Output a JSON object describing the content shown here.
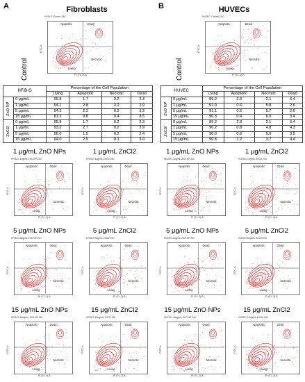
{
  "panels": {
    "a": {
      "letter": "A",
      "title": "Fibroblasts"
    },
    "b": {
      "letter": "B",
      "title": "HUVECs"
    }
  },
  "control_label": "Control",
  "quadrants": {
    "tl": "Apoptotic",
    "tr": "Dead",
    "bl": "Living",
    "br": "Necrotic"
  },
  "axes": {
    "y": "FITC-A",
    "x": "PI (FL-3)-A"
  },
  "control_plots": {
    "a": {
      "title": "HFIB-G-Control 24h"
    },
    "b": {
      "title": "HUVEC-Control 24h"
    }
  },
  "tables": {
    "a": {
      "corner": "HFIB-G",
      "header_main": "Percentage of the Cell Population",
      "columns": [
        "Living",
        "Apoptotic",
        "Necrotic",
        "Dead"
      ],
      "groups": [
        "ZnO NP",
        "ZnCl2"
      ],
      "rows": [
        [
          "0 μg/mL",
          "95.8",
          "1.7",
          "0.2",
          "2.3"
        ],
        [
          "1 μg/mL",
          "94.1",
          "2.8",
          "0.2",
          "2.9"
        ],
        [
          "5 μg/mL",
          "94.3",
          "2.3",
          "0.2",
          "3.2"
        ],
        [
          "15 μg/mL",
          "81.3",
          "9.8",
          "0.4",
          "8.5"
        ],
        [
          "0 μg/mL",
          "95.8",
          "1.7",
          "0.2",
          "2.3"
        ],
        [
          "1 μg/mL",
          "93.2",
          "2.7",
          "0.2",
          "3.9"
        ],
        [
          "5 μg/mL",
          "96.0",
          "1.5",
          "0.2",
          "2.4"
        ],
        [
          "15 μg/mL",
          "94.0",
          "2.5",
          "0.1",
          "3.4"
        ]
      ]
    },
    "b": {
      "corner": "HUVEC",
      "header_main": "Percentage of the Cell Population",
      "columns": [
        "Living",
        "Apoptotic",
        "Necrotic",
        "Dead"
      ],
      "groups": [
        "ZnO NP",
        "ZnCl2"
      ],
      "rows": [
        [
          "0 μg/mL",
          "89.2",
          "2.3",
          "2.1",
          "6.4"
        ],
        [
          "1 μg/mL",
          "91.0",
          "0.6",
          "5.8",
          "2.6"
        ],
        [
          "5 μg/mL",
          "91.1",
          "0.6",
          "5.7",
          "2.6"
        ],
        [
          "15 μg/mL",
          "90.3",
          "0.4",
          "6.0",
          "3.4"
        ],
        [
          "0 μg/mL",
          "89.2",
          "2.3",
          "2.1",
          "6.4"
        ],
        [
          "1 μg/mL",
          "90.2",
          "0.8",
          "4.8",
          "4.3"
        ],
        [
          "5 μg/mL",
          "90.0",
          "0.6",
          "5.9",
          "3.5"
        ],
        [
          "15 μg/mL",
          "90.8",
          "1.2",
          "3.7",
          "4.4"
        ]
      ]
    }
  },
  "plot_grid": [
    {
      "caption": "1 μg/mL ZnO NPs",
      "title": "HFIB-G-1ug/mL ZnO NP 24h"
    },
    {
      "caption": "1 μg/mL ZnCl2",
      "title": "HFIB-G-1ug/mL ZnCl2 24h"
    },
    {
      "caption": "1 μg/mL ZnO NPs",
      "title": "HUVEC-1ug/mL ZnO NP 24h"
    },
    {
      "caption": "1 μg/mL ZnCl2",
      "title": "HUVEC-1ug/mL ZnCl2 24h"
    },
    {
      "caption": "5 μg/mL ZnO NPs",
      "title": "HFIB-G-5ug/mL ZnO NP 24h"
    },
    {
      "caption": "5 μg/mL ZnCl2",
      "title": "HFIB-G-5ug/mL ZnCl2 24h"
    },
    {
      "caption": "5 μg/mL ZnO NPs",
      "title": "HUVEC-5ug/mL ZnO NP 24h"
    },
    {
      "caption": "5 μg/mL ZnCl2",
      "title": "HUVEC-5ug/mL ZnCl2 24h"
    },
    {
      "caption": "15 μg/mL ZnO NPs",
      "title": "HFIB-G-15ug/mL ZnO NP 24h"
    },
    {
      "caption": "15 μg/mL ZnCl2",
      "title": "HFIB-G-15ug/mL ZnCl2 24h"
    },
    {
      "caption": "15 μg/mL ZnO NPs",
      "title": "HUVEC-15ug/mL ZnO NP 24h"
    },
    {
      "caption": "15 μg/mL ZnCl2",
      "title": "HUVEC-15ug/mL ZnCl2 24h"
    }
  ],
  "colors": {
    "contour": "#e02020",
    "dots": "#e83a3a"
  }
}
